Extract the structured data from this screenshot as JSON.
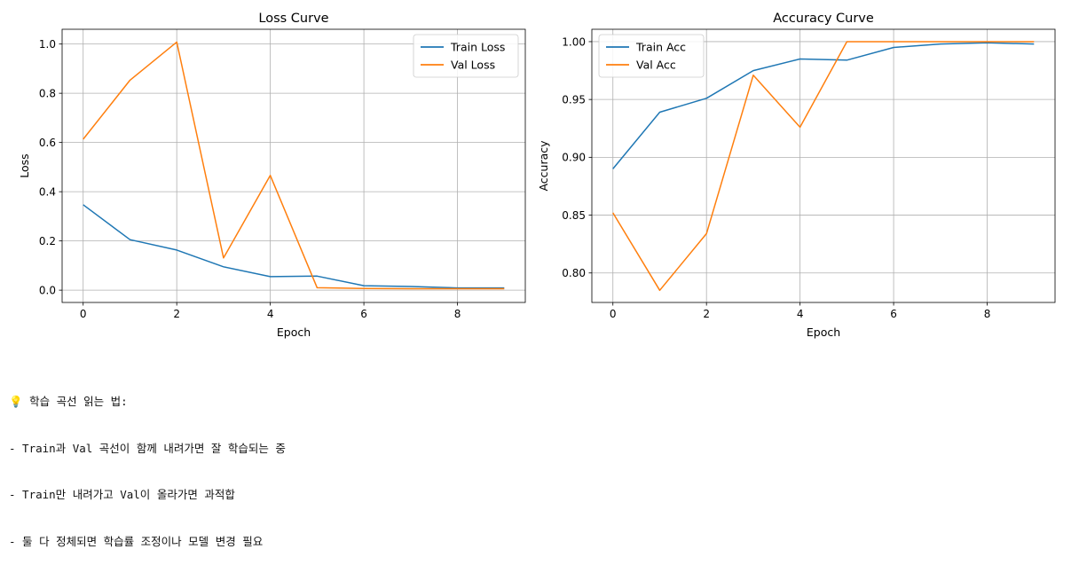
{
  "chart_data": [
    {
      "type": "line",
      "title": "Loss Curve",
      "xlabel": "Epoch",
      "ylabel": "Loss",
      "x": [
        0,
        1,
        2,
        3,
        4,
        5,
        6,
        7,
        8,
        9
      ],
      "xlim": [
        -0.45,
        9.45
      ],
      "ylim": [
        -0.05,
        1.06
      ],
      "xticks": [
        0,
        2,
        4,
        6,
        8
      ],
      "yticks": [
        0.0,
        0.2,
        0.4,
        0.6,
        0.8,
        1.0
      ],
      "ytick_labels": [
        "0.0",
        "0.2",
        "0.4",
        "0.6",
        "0.8",
        "1.0"
      ],
      "grid": true,
      "legend_position": "top-right",
      "series": [
        {
          "name": "Train Loss",
          "color": "#1f77b4",
          "values": [
            0.347,
            0.205,
            0.163,
            0.095,
            0.055,
            0.057,
            0.018,
            0.015,
            0.009,
            0.009
          ]
        },
        {
          "name": "Val Loss",
          "color": "#ff7f0e",
          "values": [
            0.613,
            0.853,
            1.008,
            0.131,
            0.466,
            0.01,
            0.007,
            0.006,
            0.006,
            0.006
          ]
        }
      ]
    },
    {
      "type": "line",
      "title": "Accuracy Curve",
      "xlabel": "Epoch",
      "ylabel": "Accuracy",
      "x": [
        0,
        1,
        2,
        3,
        4,
        5,
        6,
        7,
        8,
        9
      ],
      "xlim": [
        -0.45,
        9.45
      ],
      "ylim": [
        0.7745,
        1.0107
      ],
      "xticks": [
        0,
        2,
        4,
        6,
        8
      ],
      "yticks": [
        0.8,
        0.85,
        0.9,
        0.95,
        1.0
      ],
      "ytick_labels": [
        "0.80",
        "0.85",
        "0.90",
        "0.95",
        "1.00"
      ],
      "grid": true,
      "legend_position": "top-left",
      "series": [
        {
          "name": "Train Acc",
          "color": "#1f77b4",
          "values": [
            0.89,
            0.939,
            0.951,
            0.975,
            0.985,
            0.984,
            0.995,
            0.998,
            0.999,
            0.998
          ]
        },
        {
          "name": "Val Acc",
          "color": "#ff7f0e",
          "values": [
            0.852,
            0.785,
            0.834,
            0.971,
            0.926,
            1.0,
            1.0,
            1.0,
            1.0,
            1.0
          ]
        }
      ]
    }
  ],
  "notes": {
    "heading": "학습 곡선 읽는 법:",
    "lines": [
      "- Train과 Val 곡선이 함께 내려가면 잘 학습되는 중",
      "- Train만 내려가고 Val이 올라가면 과적합",
      "- 둘 다 정체되면 학습률 조정이나 모델 변경 필요"
    ]
  }
}
